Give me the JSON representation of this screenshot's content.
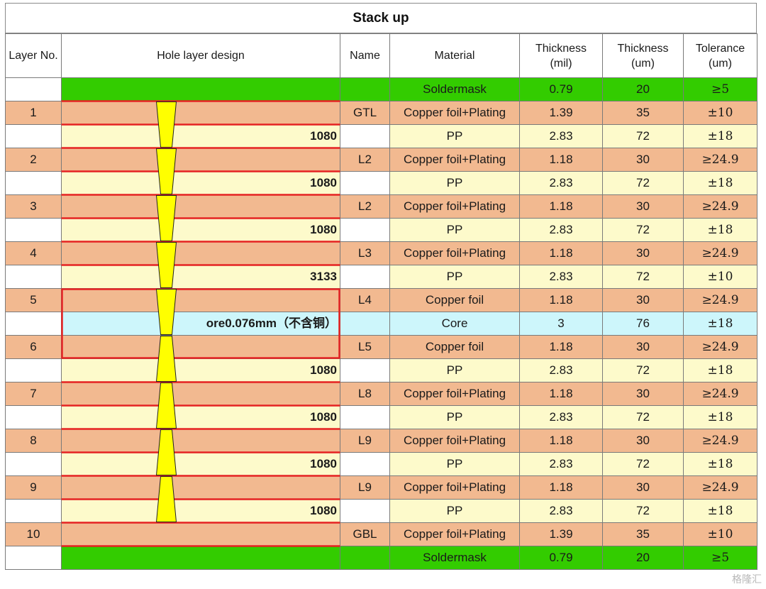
{
  "title": "Stack up",
  "headers": {
    "layer": "Layer No.",
    "hole": "Hole layer design",
    "name": "Name",
    "material": "Material",
    "thick_mil": "Thickness\n(mil)",
    "thick_um": "Thickness\n(um)",
    "tolerance": "Tolerance\n(um)"
  },
  "colors": {
    "soldermask": "#33cc00",
    "copper": "#f2b990",
    "pp": "#fdfacb",
    "core": "#cdf6fb",
    "via_fill": "#ffff00",
    "layer_border": "#e52222"
  },
  "rows": [
    {
      "layer": "",
      "hole": "",
      "name": "",
      "material": "Soldermask",
      "mil": "0.79",
      "um": "20",
      "tol": "≥5",
      "kind": "soldermask"
    },
    {
      "layer": "1",
      "hole": "",
      "name": "GTL",
      "material": "Copper foil+Plating",
      "mil": "1.39",
      "um": "35",
      "tol": "±10",
      "kind": "copper"
    },
    {
      "layer": "",
      "hole": "1080",
      "name": "",
      "material": "PP",
      "mil": "2.83",
      "um": "72",
      "tol": "±18",
      "kind": "pp"
    },
    {
      "layer": "2",
      "hole": "",
      "name": "L2",
      "material": "Copper foil+Plating",
      "mil": "1.18",
      "um": "30",
      "tol": "≥24.9",
      "kind": "copper"
    },
    {
      "layer": "",
      "hole": "1080",
      "name": "",
      "material": "PP",
      "mil": "2.83",
      "um": "72",
      "tol": "±18",
      "kind": "pp"
    },
    {
      "layer": "3",
      "hole": "",
      "name": "L2",
      "material": "Copper foil+Plating",
      "mil": "1.18",
      "um": "30",
      "tol": "≥24.9",
      "kind": "copper"
    },
    {
      "layer": "",
      "hole": "1080",
      "name": "",
      "material": "PP",
      "mil": "2.83",
      "um": "72",
      "tol": "±18",
      "kind": "pp"
    },
    {
      "layer": "4",
      "hole": "",
      "name": "L3",
      "material": "Copper foil+Plating",
      "mil": "1.18",
      "um": "30",
      "tol": "≥24.9",
      "kind": "copper"
    },
    {
      "layer": "",
      "hole": "3133",
      "name": "",
      "material": "PP",
      "mil": "2.83",
      "um": "72",
      "tol": "±10",
      "kind": "pp"
    },
    {
      "layer": "5",
      "hole": "",
      "name": "L4",
      "material": "Copper foil",
      "mil": "1.18",
      "um": "30",
      "tol": "≥24.9",
      "kind": "copper"
    },
    {
      "layer": "",
      "hole": "ore0.076mm（不含铜）",
      "name": "",
      "material": "Core",
      "mil": "3",
      "um": "76",
      "tol": "±18",
      "kind": "core"
    },
    {
      "layer": "6",
      "hole": "",
      "name": "L5",
      "material": "Copper foil",
      "mil": "1.18",
      "um": "30",
      "tol": "≥24.9",
      "kind": "copper"
    },
    {
      "layer": "",
      "hole": "1080",
      "name": "",
      "material": "PP",
      "mil": "2.83",
      "um": "72",
      "tol": "±18",
      "kind": "pp"
    },
    {
      "layer": "7",
      "hole": "",
      "name": "L8",
      "material": "Copper foil+Plating",
      "mil": "1.18",
      "um": "30",
      "tol": "≥24.9",
      "kind": "copper"
    },
    {
      "layer": "",
      "hole": "1080",
      "name": "",
      "material": "PP",
      "mil": "2.83",
      "um": "72",
      "tol": "±18",
      "kind": "pp"
    },
    {
      "layer": "8",
      "hole": "",
      "name": "L9",
      "material": "Copper foil+Plating",
      "mil": "1.18",
      "um": "30",
      "tol": "≥24.9",
      "kind": "copper"
    },
    {
      "layer": "",
      "hole": "1080",
      "name": "",
      "material": "PP",
      "mil": "2.83",
      "um": "72",
      "tol": "±18",
      "kind": "pp"
    },
    {
      "layer": "9",
      "hole": "",
      "name": "L9",
      "material": "Copper foil+Plating",
      "mil": "1.18",
      "um": "30",
      "tol": "≥24.9",
      "kind": "copper"
    },
    {
      "layer": "",
      "hole": "1080",
      "name": "",
      "material": "PP",
      "mil": "2.83",
      "um": "72",
      "tol": "±18",
      "kind": "pp"
    },
    {
      "layer": "10",
      "hole": "",
      "name": "GBL",
      "material": "Copper foil+Plating",
      "mil": "1.39",
      "um": "35",
      "tol": "±10",
      "kind": "copper"
    },
    {
      "layer": "",
      "hole": "",
      "name": "",
      "material": "Soldermask",
      "mil": "0.79",
      "um": "20",
      "tol": "≥5",
      "kind": "soldermask"
    }
  ],
  "watermark": "格隆汇"
}
